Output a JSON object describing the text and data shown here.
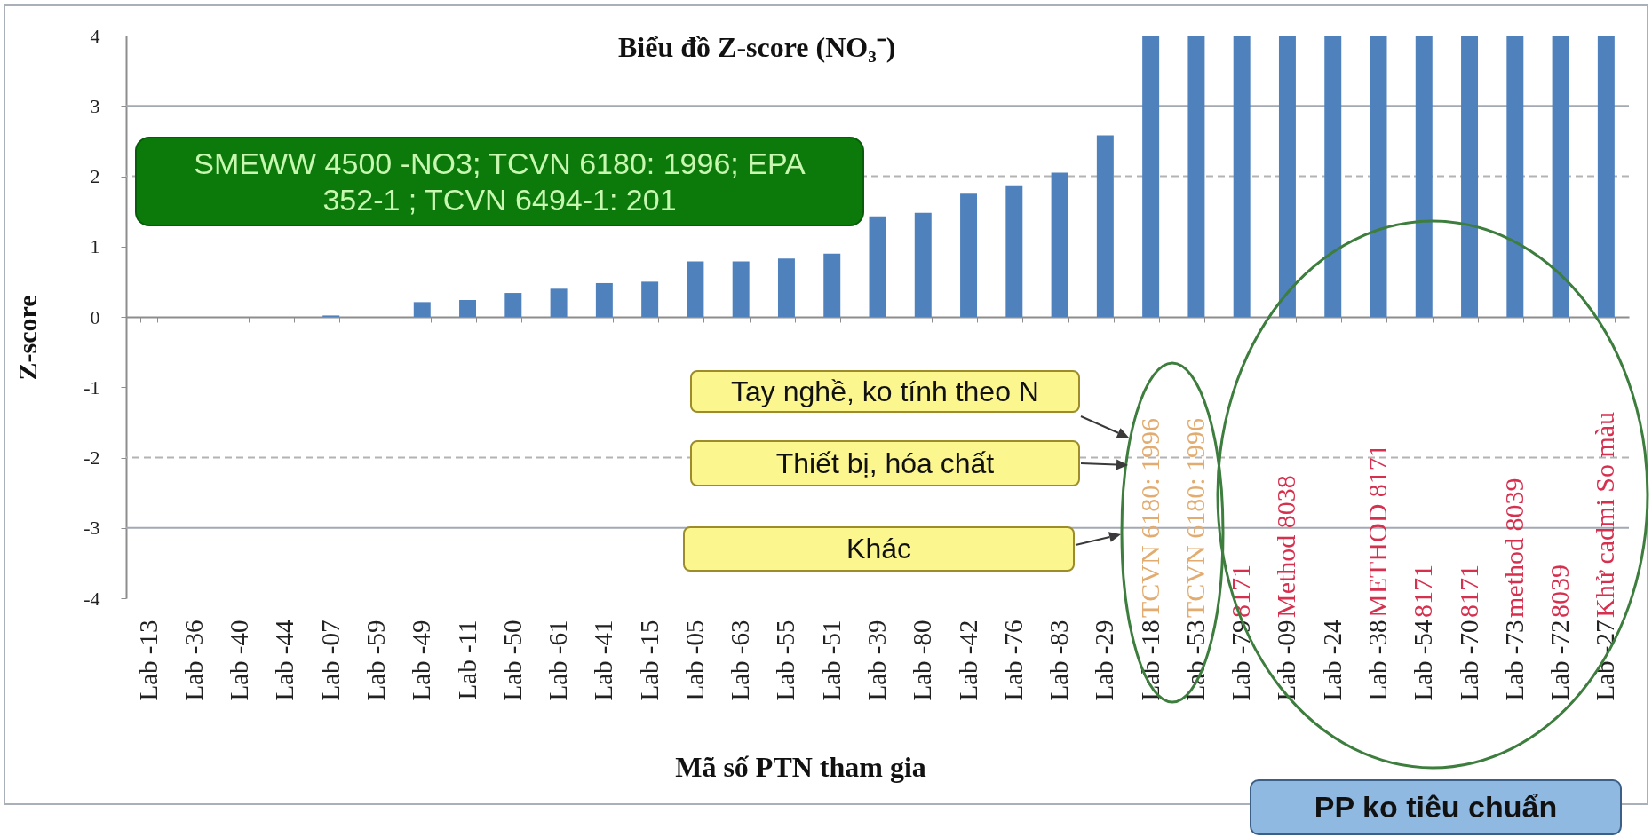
{
  "chart_data": {
    "type": "bar",
    "title": "Biểu đồ Z-score (NO₃⁻)",
    "xlabel": "Mã số PTN tham gia",
    "ylabel": "Z-score",
    "categories": [
      "Lab -13",
      "Lab -36",
      "Lab -40",
      "Lab -44",
      "Lab -07",
      "Lab -59",
      "Lab -49",
      "Lab -11",
      "Lab -50",
      "Lab -61",
      "Lab -41",
      "Lab -15",
      "Lab -05",
      "Lab -63",
      "Lab -55",
      "Lab -51",
      "Lab -39",
      "Lab -80",
      "Lab -42",
      "Lab -76",
      "Lab -83",
      "Lab -29",
      "Lab -18",
      "Lab -53",
      "Lab -79",
      "Lab -09",
      "Lab -24",
      "Lab -38",
      "Lab -54",
      "Lab -70",
      "Lab -73",
      "Lab -72",
      "Lab -27"
    ],
    "values": [
      0,
      0,
      0,
      0,
      0.02,
      0,
      0.21,
      0.24,
      0.34,
      0.4,
      0.48,
      0.5,
      0.79,
      0.79,
      0.83,
      0.9,
      1.43,
      1.48,
      1.75,
      1.87,
      2.05,
      2.58,
      4,
      4,
      4,
      4,
      4,
      4,
      4,
      4,
      4,
      4,
      4
    ],
    "color": "#4f81bd",
    "ylim": [
      -4,
      4
    ],
    "yticks": [
      -4,
      -3,
      -2,
      -1,
      0,
      1,
      2,
      3,
      4
    ],
    "grid": false,
    "ref_lines": [
      {
        "axis": "y",
        "value": 3,
        "color": "#a3a9b3",
        "line_style": "solid"
      },
      {
        "axis": "y",
        "value": 2,
        "color": "#b3b3b3",
        "line_style": "dashed"
      },
      {
        "axis": "y",
        "value": -2,
        "color": "#b3b3b3",
        "line_style": "dashed"
      },
      {
        "axis": "y",
        "value": -3,
        "color": "#a3a9b3",
        "line_style": "solid"
      }
    ],
    "annotations": [
      "SMEWW 4500 -NO3; TCVN 6180: 1996; EPA 352-1 ; TCVN 6494-1: 201",
      "Tay nghề, ko tính theo N",
      "Thiết bị, hóa chất",
      "Khác",
      "TCVN 6180: 1996",
      "TCVN 6180: 1996",
      "8171",
      "Method 8038",
      "METHOD 8171",
      "8171",
      "8171",
      "method 8039",
      "8039",
      "Khử cadmi So màu",
      "PP ko tiêu chuẩn"
    ]
  }
}
